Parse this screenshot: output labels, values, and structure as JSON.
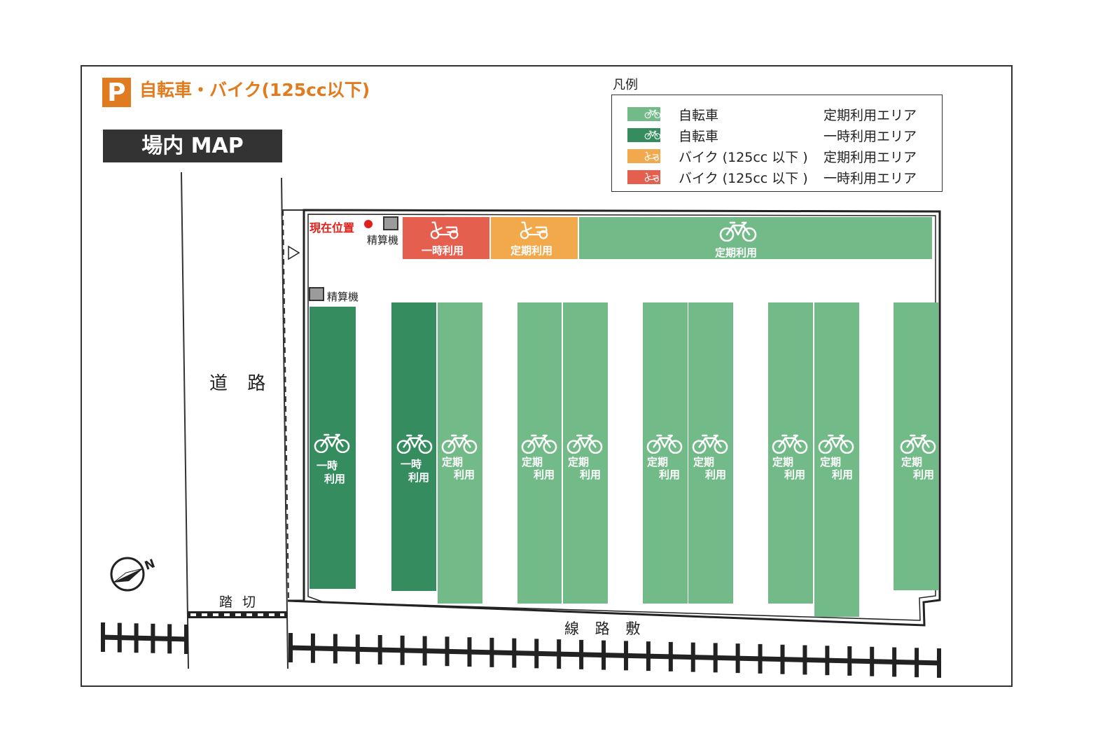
{
  "header": {
    "parking_mark": "P",
    "title": "自転車・バイク(125cc以下)",
    "map_label": "場内 MAP"
  },
  "legend": {
    "title": "凡例",
    "items": [
      {
        "type": "自転車",
        "use": "定期利用エリア",
        "color": "#72bb88",
        "icon": "bicycle-icon"
      },
      {
        "type": "自転車",
        "use": "一時利用エリア",
        "color": "#348c5f",
        "icon": "bicycle-icon"
      },
      {
        "type": "バイク (125cc 以下 )",
        "use": "定期利用エリア",
        "color": "#f2a94b",
        "icon": "scooter-icon"
      },
      {
        "type": "バイク (125cc 以下 )",
        "use": "一時利用エリア",
        "color": "#e55f4f",
        "icon": "scooter-icon"
      }
    ]
  },
  "map": {
    "road_label": "道 路",
    "crossing_label": "踏 切",
    "railway_label": "線 路 敷",
    "current_location": "現在位置",
    "kiosk_label": "精算機",
    "north_label": "N",
    "entrance_icon": "triangle-right-icon",
    "top_row": [
      {
        "label": "一時利用",
        "kind": "scooter",
        "color": "#e55f4f"
      },
      {
        "label": "定期利用",
        "kind": "scooter",
        "color": "#f2a94b"
      },
      {
        "label": "定期利用",
        "kind": "bicycle",
        "color": "#72bb88"
      }
    ],
    "bike_columns": [
      {
        "line1": "一時",
        "line2": "利用",
        "color": "#348c5f"
      },
      {
        "line1": "一時",
        "line2": "利用",
        "color": "#348c5f"
      },
      {
        "line1": "定期",
        "line2": "利用",
        "color": "#72bb88"
      },
      {
        "line1": "定期",
        "line2": "利用",
        "color": "#72bb88"
      },
      {
        "line1": "定期",
        "line2": "利用",
        "color": "#72bb88"
      },
      {
        "line1": "定期",
        "line2": "利用",
        "color": "#72bb88"
      },
      {
        "line1": "定期",
        "line2": "利用",
        "color": "#72bb88"
      },
      {
        "line1": "定期",
        "line2": "利用",
        "color": "#72bb88"
      },
      {
        "line1": "定期",
        "line2": "利用",
        "color": "#72bb88"
      },
      {
        "line1": "定期",
        "line2": "利用",
        "color": "#72bb88"
      }
    ]
  }
}
